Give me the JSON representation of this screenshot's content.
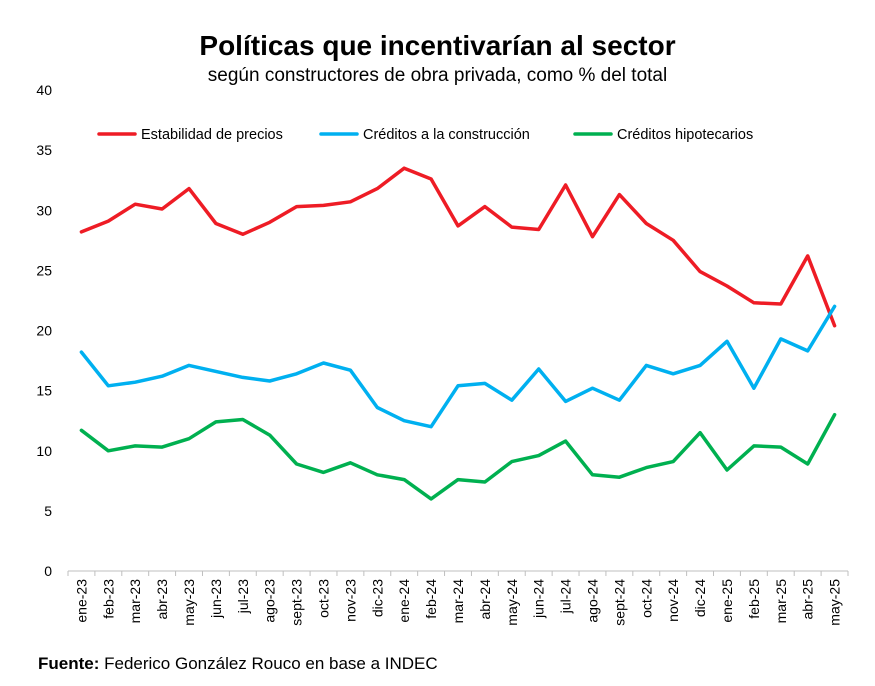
{
  "title": "Políticas que incentivarían al sector",
  "subtitle": "según constructores de obra privada, como % del total",
  "source_label": "Fuente:",
  "source_text": " Federico González Rouco en base a INDEC",
  "chart_data": {
    "type": "line",
    "title": "Políticas que incentivarían al sector",
    "subtitle": "según constructores de obra privada, como % del total",
    "xlabel": "",
    "ylabel": "",
    "ylim": [
      0,
      40
    ],
    "yticks": [
      0,
      5,
      10,
      15,
      20,
      25,
      30,
      35,
      40
    ],
    "grid": false,
    "legend_position": "top",
    "categories": [
      "ene-23",
      "feb-23",
      "mar-23",
      "abr-23",
      "may-23",
      "jun-23",
      "jul-23",
      "ago-23",
      "sept-23",
      "oct-23",
      "nov-23",
      "dic-23",
      "ene-24",
      "feb-24",
      "mar-24",
      "abr-24",
      "may-24",
      "jun-24",
      "jul-24",
      "ago-24",
      "sept-24",
      "oct-24",
      "nov-24",
      "dic-24",
      "ene-25",
      "feb-25",
      "mar-25",
      "abr-25",
      "may-25"
    ],
    "series": [
      {
        "name": "Estabilidad de precios",
        "color": "#ee1c25",
        "values": [
          28.2,
          29.1,
          30.5,
          30.1,
          31.8,
          28.9,
          28.0,
          29.0,
          30.3,
          30.4,
          30.7,
          31.8,
          33.5,
          32.6,
          28.7,
          30.3,
          28.6,
          28.4,
          32.1,
          27.8,
          31.3,
          28.9,
          27.5,
          24.9,
          23.7,
          22.3,
          22.2,
          26.2,
          20.4
        ]
      },
      {
        "name": "Créditos a la construcción",
        "color": "#00b0f0",
        "values": [
          18.2,
          15.4,
          15.7,
          16.2,
          17.1,
          16.6,
          16.1,
          15.8,
          16.4,
          17.3,
          16.7,
          13.6,
          12.5,
          12.0,
          15.4,
          15.6,
          14.2,
          16.8,
          14.1,
          15.2,
          14.2,
          17.1,
          16.4,
          17.1,
          19.1,
          15.2,
          19.3,
          18.3,
          22.0
        ]
      },
      {
        "name": "Créditos hipotecarios",
        "color": "#00b050",
        "values": [
          11.7,
          10.0,
          10.4,
          10.3,
          11.0,
          12.4,
          12.6,
          11.3,
          8.9,
          8.2,
          9.0,
          8.0,
          7.6,
          6.0,
          7.6,
          7.4,
          9.1,
          9.6,
          10.8,
          8.0,
          7.8,
          8.6,
          9.1,
          11.5,
          8.4,
          10.4,
          10.3,
          8.9,
          13.0
        ]
      }
    ]
  }
}
